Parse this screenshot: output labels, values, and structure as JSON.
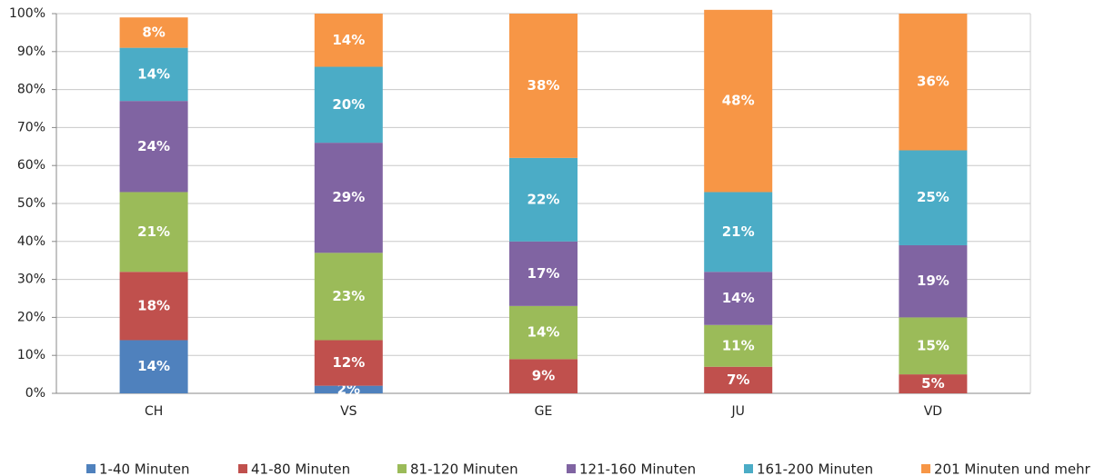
{
  "chart_data": {
    "type": "stacked_bar",
    "categories": [
      "CH",
      "VS",
      "GE",
      "JU",
      "VD"
    ],
    "ylim": [
      0,
      100
    ],
    "yticks": [
      {
        "value": 0,
        "label": "0%"
      },
      {
        "value": 10,
        "label": "10%"
      },
      {
        "value": 20,
        "label": "20%"
      },
      {
        "value": 30,
        "label": "30%"
      },
      {
        "value": 40,
        "label": "40%"
      },
      {
        "value": 50,
        "label": "50%"
      },
      {
        "value": 60,
        "label": "60%"
      },
      {
        "value": 70,
        "label": "70%"
      },
      {
        "value": 80,
        "label": "80%"
      },
      {
        "value": 90,
        "label": "90%"
      },
      {
        "value": 100,
        "label": "100%"
      }
    ],
    "grid": true,
    "legend": "bottom",
    "series": [
      {
        "name": "1-40 Minuten",
        "color": "#4f81bd",
        "values": [
          14,
          2,
          0,
          0,
          0
        ],
        "value_labels": [
          "14%",
          "2%",
          null,
          null,
          null
        ]
      },
      {
        "name": "41-80 Minuten",
        "color": "#c0504d",
        "values": [
          18,
          12,
          9,
          7,
          5
        ],
        "value_labels": [
          "18%",
          "12%",
          "9%",
          "7%",
          "5%"
        ]
      },
      {
        "name": "81-120 Minuten",
        "color": "#9bbb59",
        "values": [
          21,
          23,
          14,
          11,
          15
        ],
        "value_labels": [
          "21%",
          "23%",
          "14%",
          "11%",
          "15%"
        ]
      },
      {
        "name": "121-160 Minuten",
        "color": "#8064a2",
        "values": [
          24,
          29,
          17,
          14,
          19
        ],
        "value_labels": [
          "24%",
          "29%",
          "17%",
          "14%",
          "19%"
        ]
      },
      {
        "name": "161-200 Minuten",
        "color": "#4bacc6",
        "values": [
          14,
          20,
          22,
          21,
          25
        ],
        "value_labels": [
          "14%",
          "20%",
          "22%",
          "21%",
          "25%"
        ]
      },
      {
        "name": "201 Minuten und mehr",
        "color": "#f79646",
        "values": [
          8,
          14,
          38,
          48,
          36
        ],
        "value_labels": [
          "8%",
          "14%",
          "38%",
          "48%",
          "36%"
        ]
      }
    ]
  }
}
